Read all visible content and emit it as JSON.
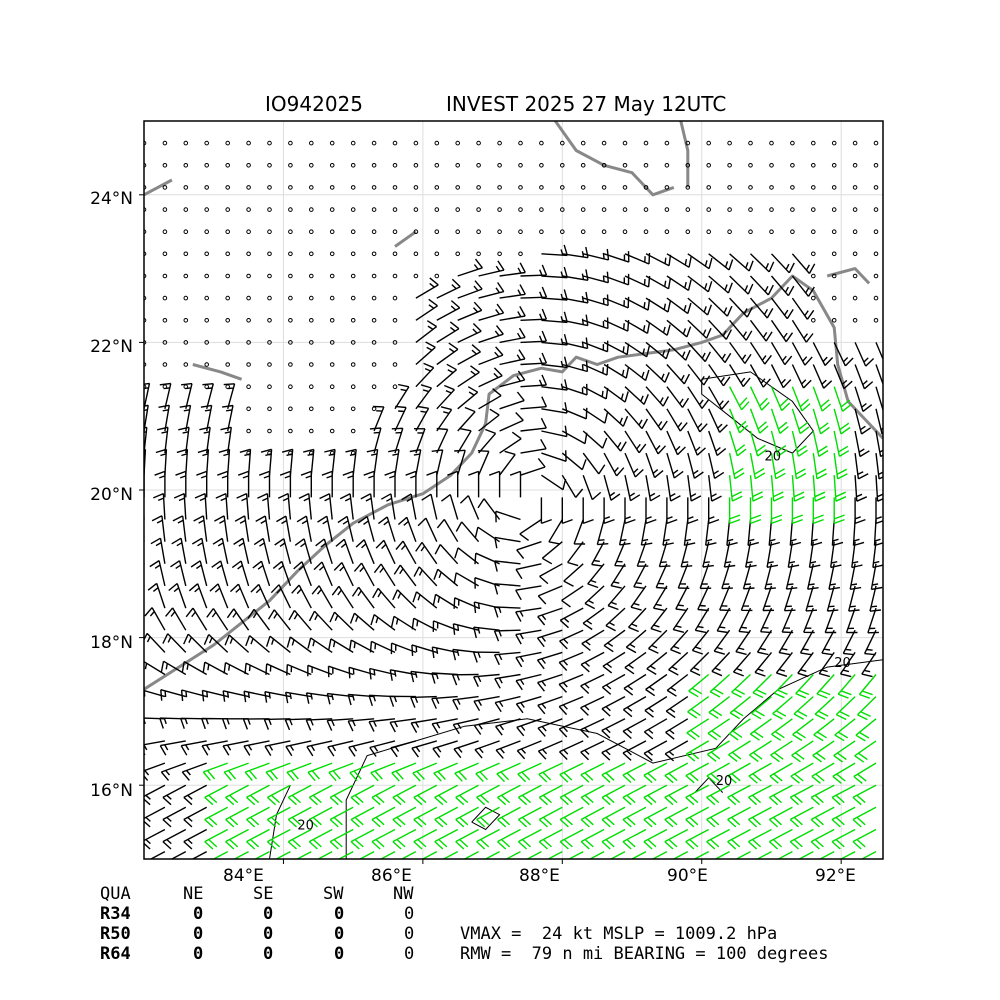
{
  "title": {
    "storm_id": "IO942025",
    "description": "INVEST 2025 27 May 12UTC"
  },
  "axes": {
    "lat_labels": [
      "24°N",
      "22°N",
      "20°N",
      "18°N",
      "16°N"
    ],
    "lon_labels": [
      "84°E",
      "86°E",
      "88°E",
      "90°E",
      "92°E"
    ],
    "lat_range": [
      15.0,
      25.0
    ],
    "lon_range": [
      82.0,
      92.6
    ],
    "grid": true
  },
  "wind_field": {
    "type": "wind barbs",
    "center": {
      "lon": 87.5,
      "lat": 19.9
    },
    "strong_wind_color": "#00dd00",
    "normal_wind_color": "#000000",
    "coastline_color": "#888888",
    "contour_label": "20"
  },
  "radii_table": {
    "header": [
      "QUA",
      "NE",
      "SE",
      "SW",
      "NW"
    ],
    "rows": [
      {
        "label": "R34",
        "values": [
          "0",
          "0",
          "0",
          "0"
        ]
      },
      {
        "label": "R50",
        "values": [
          "0",
          "0",
          "0",
          "0"
        ]
      },
      {
        "label": "R64",
        "values": [
          "0",
          "0",
          "0",
          "0"
        ]
      }
    ]
  },
  "summary": {
    "line1": "VMAX =  24 kt MSLP = 1009.2 hPa",
    "line2": "RMW =  79 n mi BEARING = 100 degrees"
  }
}
